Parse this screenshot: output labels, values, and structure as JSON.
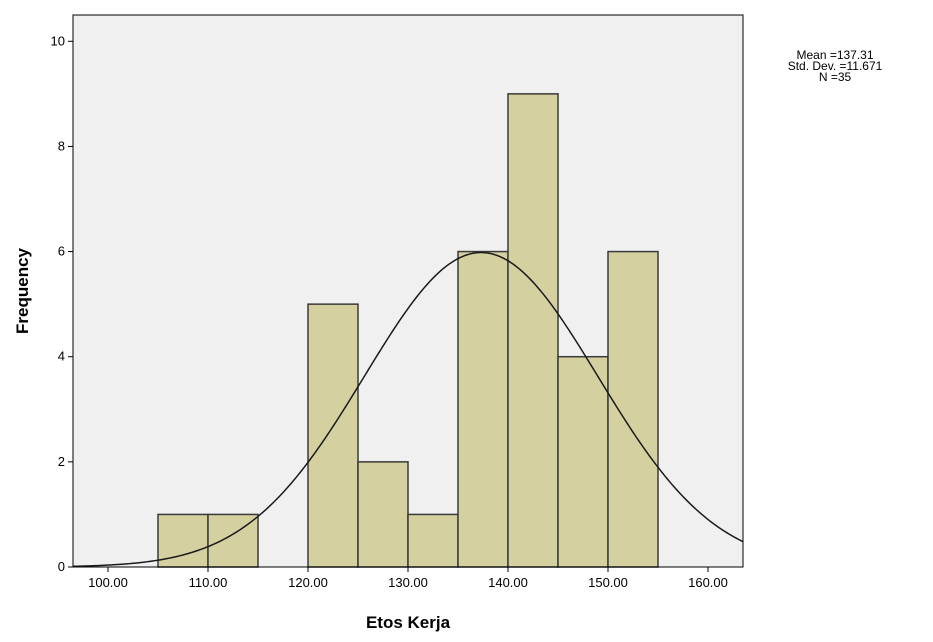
{
  "chart_data": {
    "type": "bar",
    "subtype": "histogram",
    "xlabel": "Etos Kerja",
    "ylabel": "Frequency",
    "xlim": [
      96.5,
      163.5
    ],
    "ylim": [
      0,
      10.5
    ],
    "x_ticks": [
      100,
      110,
      120,
      130,
      140,
      150,
      160
    ],
    "x_tick_labels": [
      "100.00",
      "110.00",
      "120.00",
      "130.00",
      "140.00",
      "150.00",
      "160.00"
    ],
    "y_ticks": [
      0,
      2,
      4,
      6,
      8,
      10
    ],
    "y_tick_labels": [
      "0",
      "2",
      "4",
      "6",
      "8",
      "10"
    ],
    "bins": [
      {
        "start": 105,
        "end": 110,
        "count": 1
      },
      {
        "start": 110,
        "end": 115,
        "count": 1
      },
      {
        "start": 115,
        "end": 120,
        "count": 0
      },
      {
        "start": 120,
        "end": 125,
        "count": 5
      },
      {
        "start": 125,
        "end": 130,
        "count": 2
      },
      {
        "start": 130,
        "end": 135,
        "count": 1
      },
      {
        "start": 135,
        "end": 140,
        "count": 6
      },
      {
        "start": 140,
        "end": 145,
        "count": 9
      },
      {
        "start": 145,
        "end": 150,
        "count": 4
      },
      {
        "start": 150,
        "end": 155,
        "count": 6
      }
    ],
    "normal_curve": {
      "mean": 137.31,
      "std": 11.671,
      "n": 35,
      "bin_width": 5
    },
    "colors": {
      "bar_fill": "#d4d09f",
      "bar_stroke": "#3a3a3a",
      "plot_bg": "#f0f0f0",
      "curve": "#1a1a1a"
    },
    "grid": false,
    "legend": "none"
  },
  "stats": {
    "mean": "Mean =137.31",
    "std_dev": "Std. Dev. =11.671",
    "n": "N =35"
  }
}
